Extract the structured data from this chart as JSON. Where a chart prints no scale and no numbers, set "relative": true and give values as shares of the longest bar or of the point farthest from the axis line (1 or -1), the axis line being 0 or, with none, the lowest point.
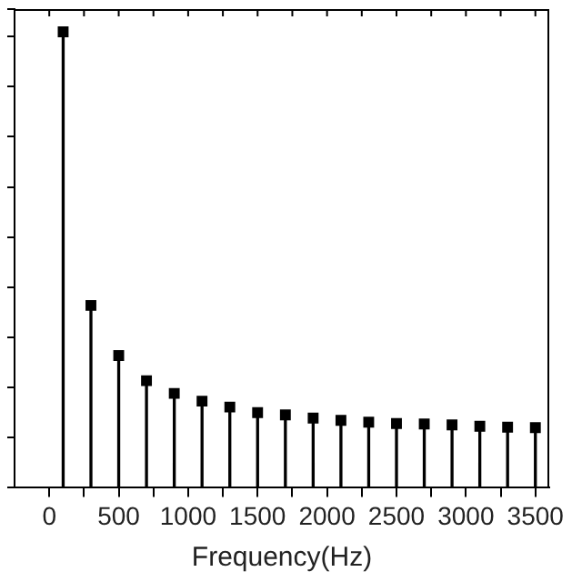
{
  "chart_data": {
    "type": "lollipop",
    "xlabel": "Frequency(Hz)",
    "relative": true,
    "tick_labels": "x",
    "marker": "square",
    "grid": false,
    "legend": false,
    "x": [
      100,
      300,
      500,
      700,
      900,
      1100,
      1300,
      1500,
      1700,
      1900,
      2100,
      2300,
      2500,
      2700,
      2900,
      3100,
      3300,
      3500
    ],
    "series": [
      {
        "color": "#000000",
        "values": [
          1,
          0.4,
          0.29,
          0.235,
          0.207,
          0.19,
          0.177,
          0.165,
          0.16,
          0.153,
          0.148,
          0.144,
          0.141,
          0.14,
          0.138,
          0.135,
          0.133,
          0.132
        ]
      }
    ],
    "xlim": [
      -250,
      3600
    ],
    "xticks": [
      0,
      {
        "value": 250,
        "label": null
      },
      500,
      {
        "value": 750,
        "label": null
      },
      1000,
      {
        "value": 1250,
        "label": null
      },
      1500,
      {
        "value": 1750,
        "label": null
      },
      2000,
      {
        "value": 2250,
        "label": null
      },
      2500,
      {
        "value": 2750,
        "label": null
      },
      3000,
      {
        "value": 3250,
        "label": null
      },
      3500
    ]
  }
}
